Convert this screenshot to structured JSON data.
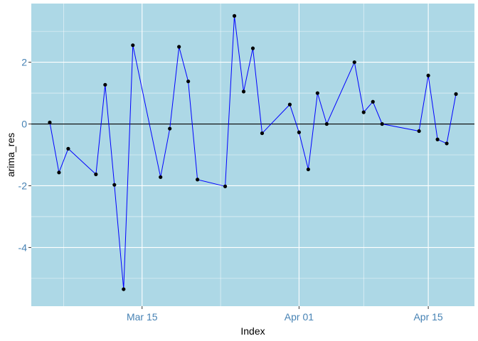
{
  "chart_data": {
    "type": "line",
    "xlabel": "Index",
    "ylabel": "arima_res",
    "x_dates": [
      "2021-03-05",
      "2021-03-06",
      "2021-03-07",
      "2021-03-10",
      "2021-03-11",
      "2021-03-12",
      "2021-03-13",
      "2021-03-14",
      "2021-03-17",
      "2021-03-18",
      "2021-03-19",
      "2021-03-20",
      "2021-03-21",
      "2021-03-24",
      "2021-03-25",
      "2021-03-26",
      "2021-03-27",
      "2021-03-28",
      "2021-03-31",
      "2021-04-01",
      "2021-04-02",
      "2021-04-03",
      "2021-04-04",
      "2021-04-07",
      "2021-04-08",
      "2021-04-09",
      "2021-04-10",
      "2021-04-14",
      "2021-04-15",
      "2021-04-16",
      "2021-04-17",
      "2021-04-18"
    ],
    "x_ticks": [
      "Mar 15",
      "Apr 01",
      "Apr 15"
    ],
    "x_tick_dates": [
      "2021-03-15",
      "2021-04-01",
      "2021-04-15"
    ],
    "xlim": [
      "2021-03-03",
      "2021-04-20"
    ],
    "y_ticks": [
      -4,
      -2,
      0,
      2
    ],
    "ylim": [
      -5.9,
      3.9
    ],
    "series": [
      {
        "values": [
          0.05,
          -1.57,
          -0.8,
          -1.63,
          1.27,
          -1.97,
          -5.35,
          2.55,
          -1.72,
          -0.15,
          2.5,
          1.38,
          -1.8,
          -2.02,
          3.5,
          1.05,
          2.45,
          -0.3,
          0.63,
          -0.27,
          -1.47,
          1.0,
          0.0,
          2.0,
          0.38,
          0.72,
          0.0,
          -0.23,
          1.57,
          -0.5,
          -0.63,
          0.97
        ]
      }
    ],
    "hline_y": 0,
    "grid": true,
    "colors": {
      "panel": "#add8e6",
      "grid": "#ffffff",
      "line": "#0000ff",
      "point": "#000000",
      "zero_line": "#000000",
      "tick_label": "#4682b4"
    }
  }
}
